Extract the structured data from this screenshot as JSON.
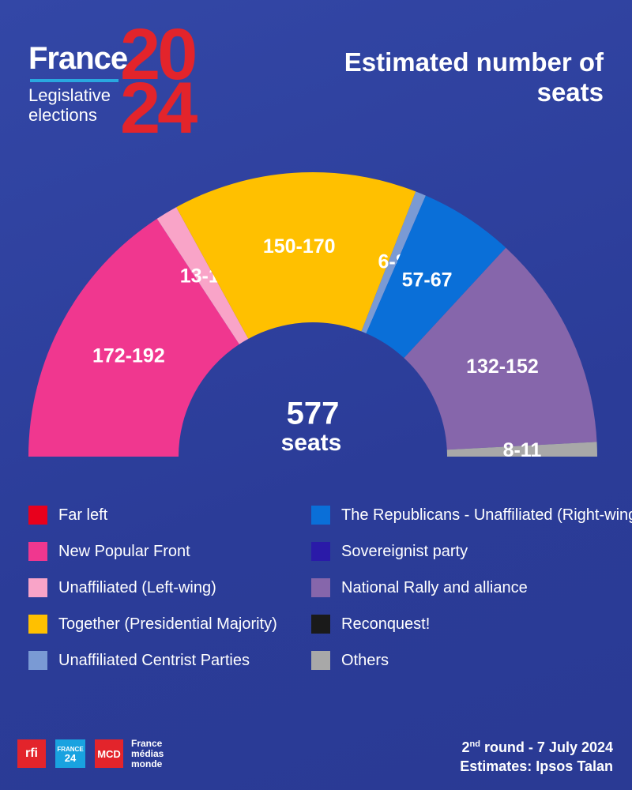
{
  "header": {
    "brand": "France",
    "year_top": "20",
    "year_bottom": "24",
    "subtitle_line1": "Legislative",
    "subtitle_line2": "elections"
  },
  "chart_data": {
    "type": "semicircle",
    "title": "Estimated number of seats",
    "total": 577,
    "total_label": "seats",
    "segments": [
      {
        "low": 172,
        "high": 192,
        "value_label": "172-192",
        "color": "#f0378f"
      },
      {
        "low": 13,
        "high": 16,
        "value_label": "13-16",
        "color": "#f9a4c8"
      },
      {
        "low": 150,
        "high": 170,
        "value_label": "150-170",
        "color": "#ffc000"
      },
      {
        "low": 6,
        "high": 8,
        "value_label": "6-8",
        "color": "#7a9ad4"
      },
      {
        "low": 57,
        "high": 67,
        "value_label": "57-67",
        "color": "#0a6fd8"
      },
      {
        "low": 132,
        "high": 152,
        "value_label": "132-152",
        "color": "#8666ab"
      },
      {
        "low": 8,
        "high": 11,
        "value_label": "8-11",
        "color": "#a8a8a8"
      }
    ],
    "legend": [
      {
        "name": "Far left",
        "color": "#e8001c"
      },
      {
        "name": "New Popular Front",
        "color": "#f0378f"
      },
      {
        "name": "Unaffiliated (Left-wing)",
        "color": "#f9a4c8"
      },
      {
        "name": "Together (Presidential Majority)",
        "color": "#ffc000"
      },
      {
        "name": "Unaffiliated Centrist Parties",
        "color": "#7a9ad4"
      },
      {
        "name": "The Republicans - Unaffiliated (Right-wing)",
        "color": "#0a6fd8"
      },
      {
        "name": "Sovereignist party",
        "color": "#2a1aa8"
      },
      {
        "name": "National Rally and alliance",
        "color": "#8666ab"
      },
      {
        "name": "Reconquest!",
        "color": "#1a1a1a"
      },
      {
        "name": "Others",
        "color": "#a8a8a8"
      }
    ]
  },
  "footer": {
    "round_number": "2",
    "round_suffix": "nd",
    "round_text": " round - 7 July 2024",
    "source": "Estimates: Ipsos Talan",
    "logos": {
      "rfi": "rfi",
      "f24_top": "FRANCE",
      "f24_bottom": "24",
      "mcd": "MCD",
      "fmm": "France médias monde"
    }
  }
}
